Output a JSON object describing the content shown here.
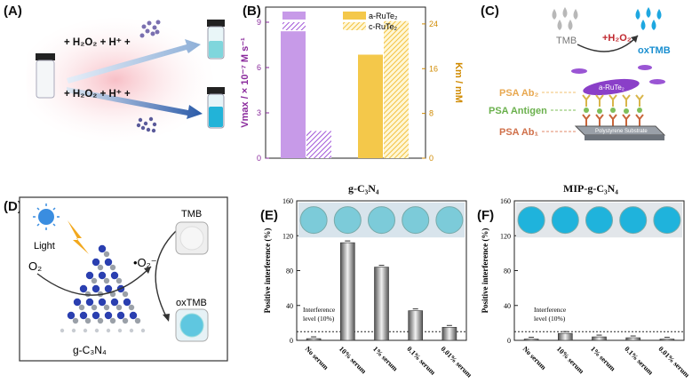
{
  "panels": {
    "A": {
      "label": "(A)",
      "reagent_top": "+ H₂O₂ + H⁺ +",
      "reagent_bottom": "+ H₂O₂ + H⁺ +"
    },
    "B": {
      "label": "(B)",
      "legend": [
        "a-RuTe₂",
        "c-RuTe₂"
      ],
      "ylabel_left": "Vmax / × 10⁻⁷ M s⁻¹",
      "ylabel_right": "Km / mM"
    },
    "C": {
      "label": "(C)",
      "tmb": "TMB",
      "h2o2": "+H₂O₂",
      "oxtmb": "oxTMB",
      "nanozyme": "a-RuTe₂",
      "psa_ab2": "PSA Ab₂",
      "psa_antigen": "PSA Antigen",
      "psa_ab1": "PSA Ab₁",
      "substrate": "Polystyrene Substrate"
    },
    "D": {
      "label": "(D)",
      "light": "Light",
      "o2": "O₂",
      "superoxide": "•O₂⁻",
      "tmb": "TMB",
      "oxtmb": "oxTMB",
      "material": "g-C₃N₄"
    },
    "E": {
      "label": "(E)",
      "title": "g-C₃N₄"
    },
    "F": {
      "label": "(F)",
      "title": "MIP-g-C₃N₄"
    }
  },
  "chart_data": [
    {
      "id": "B",
      "type": "bar",
      "categories": [
        "Vmax",
        "Km"
      ],
      "series": [
        {
          "name": "a-RuTe₂",
          "axis": "left",
          "values": [
            8.4,
            null
          ]
        },
        {
          "name": "c-RuTe₂",
          "axis": "left",
          "values": [
            1.8,
            null
          ]
        },
        {
          "name": "a-RuTe₂",
          "axis": "right",
          "values": [
            null,
            18.5
          ]
        },
        {
          "name": "c-RuTe₂",
          "axis": "right",
          "values": [
            null,
            24.5
          ]
        }
      ],
      "ylim_left": [
        0,
        10
      ],
      "yticks_left": [
        0,
        3,
        6,
        9
      ],
      "ylim_right": [
        0,
        27
      ],
      "yticks_right": [
        0,
        8,
        16,
        24
      ],
      "ylabel_left": "Vmax / × 10⁻⁷ M s⁻¹",
      "ylabel_right": "Km / mM"
    },
    {
      "id": "E",
      "type": "bar",
      "title": "g-C₃N₄",
      "categories": [
        "No serum",
        "10% serum",
        "1% serum",
        "0.1% serum",
        "0.01% serum"
      ],
      "values": [
        2,
        112,
        84,
        34,
        15
      ],
      "ylabel": "Positive interference (%)",
      "ylim": [
        0,
        160
      ],
      "yticks": [
        0,
        40,
        80,
        120,
        160
      ],
      "threshold": 10,
      "threshold_label": "Interference\nlevel (10%)"
    },
    {
      "id": "F",
      "type": "bar",
      "title": "MIP-g-C₃N₄",
      "categories": [
        "No serum",
        "10% serum",
        "1% serum",
        "0.1% serum",
        "0.01% serum"
      ],
      "values": [
        1.5,
        8,
        4,
        3,
        1.5
      ],
      "ylabel": "Positive interference (%)",
      "ylim": [
        0,
        160
      ],
      "yticks": [
        0,
        40,
        80,
        120,
        160
      ],
      "threshold": 10,
      "threshold_label": "Interference\nlevel (10%)"
    }
  ]
}
